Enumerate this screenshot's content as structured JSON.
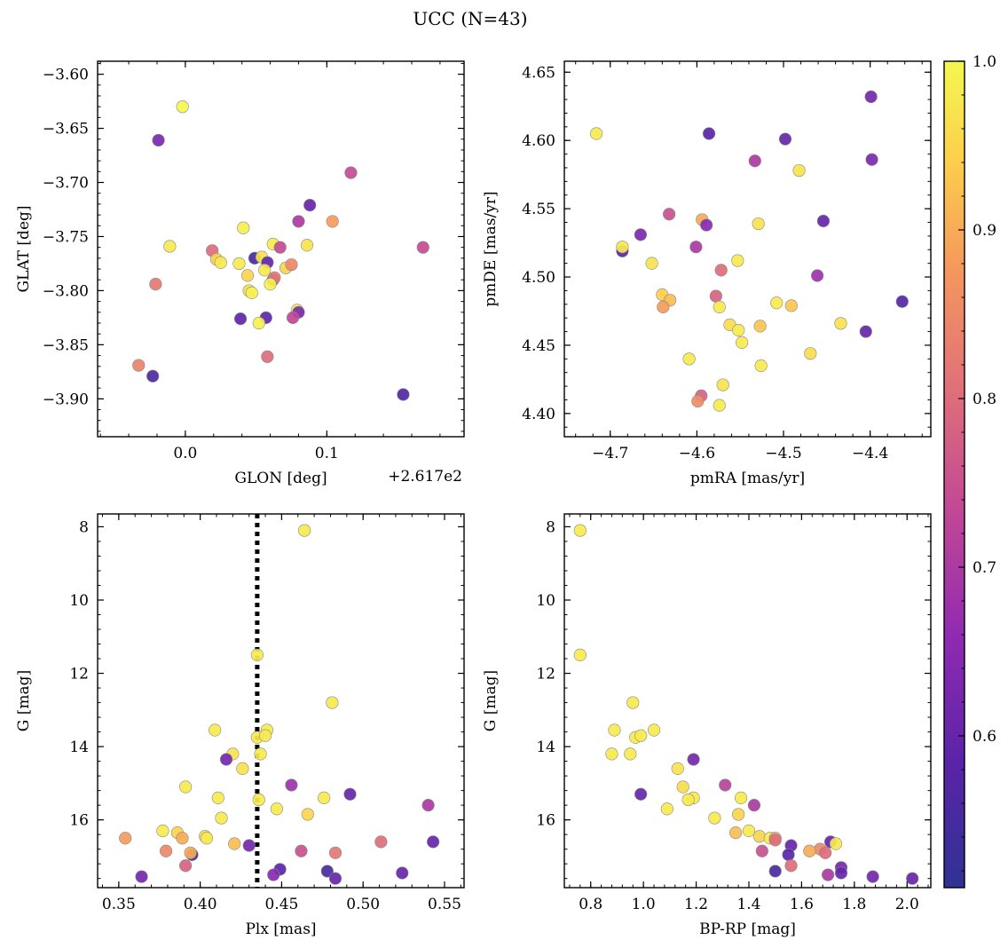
{
  "title": "UCC (N=43)",
  "colorbar": {
    "ticks": [
      0.6,
      0.7,
      0.8,
      0.9,
      1.0
    ],
    "tick_labels": [
      "0.6",
      "0.7",
      "0.8",
      "0.9",
      "1.0"
    ],
    "range": [
      0.51,
      1.0
    ],
    "colormap": "plasma"
  },
  "chart_data": [
    {
      "type": "scatter",
      "title": "",
      "xlabel": "GLON [deg]",
      "ylabel": "GLAT [deg]",
      "x_offset_label": "+2.617e2",
      "xlim": [
        -0.062,
        0.197
      ],
      "ylim": [
        -3.935,
        -3.588
      ],
      "y_inverted": false,
      "xticks": [
        0.0,
        0.1
      ],
      "xtick_labels": [
        "0.0",
        "0.1"
      ],
      "yticks": [
        -3.6,
        -3.65,
        -3.7,
        -3.75,
        -3.8,
        -3.85,
        -3.9
      ],
      "ytick_labels": [
        "−3.60",
        "−3.65",
        "−3.70",
        "−3.75",
        "−3.80",
        "−3.85",
        "−3.90"
      ],
      "points": [
        {
          "x": -0.002,
          "y": -3.63,
          "c": 1.0
        },
        {
          "x": -0.019,
          "y": -3.661,
          "c": 0.63
        },
        {
          "x": 0.117,
          "y": -3.691,
          "c": 0.74
        },
        {
          "x": 0.088,
          "y": -3.721,
          "c": 0.6
        },
        {
          "x": 0.08,
          "y": -3.736,
          "c": 0.7
        },
        {
          "x": 0.104,
          "y": -3.736,
          "c": 0.88
        },
        {
          "x": 0.041,
          "y": -3.742,
          "c": 0.99
        },
        {
          "x": 0.168,
          "y": -3.76,
          "c": 0.74
        },
        {
          "x": -0.011,
          "y": -3.759,
          "c": 0.98
        },
        {
          "x": 0.062,
          "y": -3.757,
          "c": 0.98
        },
        {
          "x": 0.067,
          "y": -3.76,
          "c": 0.74
        },
        {
          "x": 0.086,
          "y": -3.758,
          "c": 0.97
        },
        {
          "x": 0.019,
          "y": -3.763,
          "c": 0.8
        },
        {
          "x": 0.022,
          "y": -3.771,
          "c": 0.94
        },
        {
          "x": 0.025,
          "y": -3.774,
          "c": 0.98
        },
        {
          "x": 0.038,
          "y": -3.775,
          "c": 0.98
        },
        {
          "x": 0.049,
          "y": -3.77,
          "c": 0.55
        },
        {
          "x": 0.054,
          "y": -3.769,
          "c": 0.97
        },
        {
          "x": 0.058,
          "y": -3.774,
          "c": 0.6
        },
        {
          "x": 0.071,
          "y": -3.779,
          "c": 0.95
        },
        {
          "x": 0.075,
          "y": -3.776,
          "c": 0.85
        },
        {
          "x": 0.056,
          "y": -3.781,
          "c": 0.98
        },
        {
          "x": 0.044,
          "y": -3.786,
          "c": 0.95
        },
        {
          "x": 0.062,
          "y": -3.79,
          "c": 0.65
        },
        {
          "x": 0.063,
          "y": -3.788,
          "c": 0.82
        },
        {
          "x": 0.06,
          "y": -3.794,
          "c": 0.99
        },
        {
          "x": -0.021,
          "y": -3.794,
          "c": 0.82
        },
        {
          "x": 0.045,
          "y": -3.8,
          "c": 0.96
        },
        {
          "x": 0.047,
          "y": -3.802,
          "c": 0.99
        },
        {
          "x": 0.079,
          "y": -3.818,
          "c": 0.98
        },
        {
          "x": 0.08,
          "y": -3.82,
          "c": 0.63
        },
        {
          "x": 0.076,
          "y": -3.825,
          "c": 0.73
        },
        {
          "x": 0.057,
          "y": -3.825,
          "c": 0.59
        },
        {
          "x": 0.039,
          "y": -3.826,
          "c": 0.59
        },
        {
          "x": 0.052,
          "y": -3.83,
          "c": 0.99
        },
        {
          "x": 0.058,
          "y": -3.861,
          "c": 0.8
        },
        {
          "x": -0.033,
          "y": -3.869,
          "c": 0.84
        },
        {
          "x": -0.023,
          "y": -3.879,
          "c": 0.56
        },
        {
          "x": 0.154,
          "y": -3.896,
          "c": 0.57
        }
      ]
    },
    {
      "type": "scatter",
      "title": "",
      "xlabel": "pmRA [mas/yr]",
      "ylabel": "pmDE [mas/yr]",
      "xlim": [
        -4.753,
        -4.33
      ],
      "ylim": [
        4.383,
        4.658
      ],
      "y_inverted": false,
      "xticks": [
        -4.7,
        -4.6,
        -4.5,
        -4.4
      ],
      "xtick_labels": [
        "−4.7",
        "−4.6",
        "−4.5",
        "−4.4"
      ],
      "yticks": [
        4.4,
        4.45,
        4.5,
        4.55,
        4.6,
        4.65
      ],
      "ytick_labels": [
        "4.40",
        "4.45",
        "4.50",
        "4.55",
        "4.60",
        "4.65"
      ],
      "points": [
        {
          "x": -4.399,
          "y": 4.632,
          "c": 0.62
        },
        {
          "x": -4.716,
          "y": 4.605,
          "c": 0.98
        },
        {
          "x": -4.586,
          "y": 4.605,
          "c": 0.58
        },
        {
          "x": -4.498,
          "y": 4.601,
          "c": 0.6
        },
        {
          "x": -4.398,
          "y": 4.586,
          "c": 0.63
        },
        {
          "x": -4.533,
          "y": 4.585,
          "c": 0.7
        },
        {
          "x": -4.482,
          "y": 4.578,
          "c": 0.97
        },
        {
          "x": -4.632,
          "y": 4.546,
          "c": 0.75
        },
        {
          "x": -4.594,
          "y": 4.542,
          "c": 0.9
        },
        {
          "x": -4.454,
          "y": 4.541,
          "c": 0.6
        },
        {
          "x": -4.589,
          "y": 4.538,
          "c": 0.65
        },
        {
          "x": -4.529,
          "y": 4.539,
          "c": 0.97
        },
        {
          "x": -4.665,
          "y": 4.531,
          "c": 0.63
        },
        {
          "x": -4.601,
          "y": 4.522,
          "c": 0.7
        },
        {
          "x": -4.686,
          "y": 4.519,
          "c": 0.58
        },
        {
          "x": -4.686,
          "y": 4.522,
          "c": 0.98
        },
        {
          "x": -4.652,
          "y": 4.51,
          "c": 0.97
        },
        {
          "x": -4.553,
          "y": 4.512,
          "c": 0.98
        },
        {
          "x": -4.572,
          "y": 4.505,
          "c": 0.8
        },
        {
          "x": -4.461,
          "y": 4.501,
          "c": 0.68
        },
        {
          "x": -4.64,
          "y": 4.487,
          "c": 0.94
        },
        {
          "x": -4.578,
          "y": 4.486,
          "c": 0.78
        },
        {
          "x": -4.631,
          "y": 4.483,
          "c": 0.92
        },
        {
          "x": -4.363,
          "y": 4.482,
          "c": 0.57
        },
        {
          "x": -4.508,
          "y": 4.481,
          "c": 0.98
        },
        {
          "x": -4.639,
          "y": 4.478,
          "c": 0.88
        },
        {
          "x": -4.574,
          "y": 4.478,
          "c": 0.98
        },
        {
          "x": -4.491,
          "y": 4.479,
          "c": 0.93
        },
        {
          "x": -4.434,
          "y": 4.466,
          "c": 0.97
        },
        {
          "x": -4.562,
          "y": 4.465,
          "c": 0.96
        },
        {
          "x": -4.527,
          "y": 4.464,
          "c": 0.93
        },
        {
          "x": -4.405,
          "y": 4.46,
          "c": 0.6
        },
        {
          "x": -4.552,
          "y": 4.461,
          "c": 0.98
        },
        {
          "x": -4.548,
          "y": 4.452,
          "c": 0.98
        },
        {
          "x": -4.469,
          "y": 4.444,
          "c": 0.96
        },
        {
          "x": -4.609,
          "y": 4.44,
          "c": 0.98
        },
        {
          "x": -4.526,
          "y": 4.435,
          "c": 0.98
        },
        {
          "x": -4.57,
          "y": 4.421,
          "c": 0.97
        },
        {
          "x": -4.595,
          "y": 4.413,
          "c": 0.78
        },
        {
          "x": -4.599,
          "y": 4.409,
          "c": 0.86
        },
        {
          "x": -4.574,
          "y": 4.406,
          "c": 0.98
        }
      ]
    },
    {
      "type": "scatter",
      "title": "",
      "xlabel": "Plx [mas]",
      "ylabel": "G [mag]",
      "xlim": [
        0.337,
        0.562
      ],
      "ylim": [
        17.85,
        7.65
      ],
      "y_inverted": true,
      "xticks": [
        0.35,
        0.4,
        0.45,
        0.5,
        0.55
      ],
      "xtick_labels": [
        "0.35",
        "0.40",
        "0.45",
        "0.50",
        "0.55"
      ],
      "yticks": [
        8,
        10,
        12,
        14,
        16
      ],
      "ytick_labels": [
        "8",
        "10",
        "12",
        "14",
        "16"
      ],
      "vline": {
        "x": 0.435,
        "style": "dotted",
        "color": "#000000"
      },
      "points": [
        {
          "x": 0.464,
          "y": 8.1,
          "c": 0.98
        },
        {
          "x": 0.435,
          "y": 11.5,
          "c": 0.98
        },
        {
          "x": 0.481,
          "y": 12.8,
          "c": 0.98
        },
        {
          "x": 0.409,
          "y": 13.55,
          "c": 0.98
        },
        {
          "x": 0.441,
          "y": 13.55,
          "c": 0.98
        },
        {
          "x": 0.435,
          "y": 13.75,
          "c": 0.98
        },
        {
          "x": 0.44,
          "y": 13.7,
          "c": 0.98
        },
        {
          "x": 0.42,
          "y": 14.2,
          "c": 0.97
        },
        {
          "x": 0.437,
          "y": 14.2,
          "c": 0.98
        },
        {
          "x": 0.416,
          "y": 14.35,
          "c": 0.62
        },
        {
          "x": 0.426,
          "y": 14.6,
          "c": 0.97
        },
        {
          "x": 0.456,
          "y": 15.05,
          "c": 0.68
        },
        {
          "x": 0.391,
          "y": 15.1,
          "c": 0.98
        },
        {
          "x": 0.492,
          "y": 15.3,
          "c": 0.6
        },
        {
          "x": 0.476,
          "y": 15.4,
          "c": 0.98
        },
        {
          "x": 0.411,
          "y": 15.4,
          "c": 0.98
        },
        {
          "x": 0.436,
          "y": 15.45,
          "c": 0.98
        },
        {
          "x": 0.54,
          "y": 15.6,
          "c": 0.7
        },
        {
          "x": 0.447,
          "y": 15.7,
          "c": 0.98
        },
        {
          "x": 0.466,
          "y": 15.85,
          "c": 0.95
        },
        {
          "x": 0.413,
          "y": 15.95,
          "c": 0.98
        },
        {
          "x": 0.377,
          "y": 16.3,
          "c": 0.98
        },
        {
          "x": 0.386,
          "y": 16.35,
          "c": 0.95
        },
        {
          "x": 0.389,
          "y": 16.5,
          "c": 0.9
        },
        {
          "x": 0.354,
          "y": 16.5,
          "c": 0.88
        },
        {
          "x": 0.403,
          "y": 16.45,
          "c": 0.97
        },
        {
          "x": 0.404,
          "y": 16.5,
          "c": 0.98
        },
        {
          "x": 0.421,
          "y": 16.65,
          "c": 0.92
        },
        {
          "x": 0.511,
          "y": 16.6,
          "c": 0.8
        },
        {
          "x": 0.543,
          "y": 16.6,
          "c": 0.6
        },
        {
          "x": 0.43,
          "y": 16.7,
          "c": 0.62
        },
        {
          "x": 0.379,
          "y": 16.85,
          "c": 0.85
        },
        {
          "x": 0.462,
          "y": 16.85,
          "c": 0.75
        },
        {
          "x": 0.483,
          "y": 16.9,
          "c": 0.82
        },
        {
          "x": 0.395,
          "y": 16.95,
          "c": 0.55
        },
        {
          "x": 0.394,
          "y": 16.9,
          "c": 0.9
        },
        {
          "x": 0.391,
          "y": 17.25,
          "c": 0.78
        },
        {
          "x": 0.449,
          "y": 17.35,
          "c": 0.58
        },
        {
          "x": 0.478,
          "y": 17.4,
          "c": 0.55
        },
        {
          "x": 0.445,
          "y": 17.5,
          "c": 0.65
        },
        {
          "x": 0.524,
          "y": 17.45,
          "c": 0.6
        },
        {
          "x": 0.364,
          "y": 17.55,
          "c": 0.62
        },
        {
          "x": 0.483,
          "y": 17.6,
          "c": 0.6
        }
      ]
    },
    {
      "type": "scatter",
      "title": "",
      "xlabel": "BP-RP [mag]",
      "ylabel": "G [mag]",
      "xlim": [
        0.7,
        2.09
      ],
      "ylim": [
        17.85,
        7.65
      ],
      "y_inverted": true,
      "xticks": [
        0.8,
        1.0,
        1.2,
        1.4,
        1.6,
        1.8,
        2.0
      ],
      "xtick_labels": [
        "0.8",
        "1.0",
        "1.2",
        "1.4",
        "1.6",
        "1.8",
        "2.0"
      ],
      "yticks": [
        8,
        10,
        12,
        14,
        16
      ],
      "ytick_labels": [
        "8",
        "10",
        "12",
        "14",
        "16"
      ],
      "points": [
        {
          "x": 0.76,
          "y": 8.1,
          "c": 0.98
        },
        {
          "x": 0.76,
          "y": 11.5,
          "c": 0.98
        },
        {
          "x": 0.96,
          "y": 12.8,
          "c": 0.98
        },
        {
          "x": 0.89,
          "y": 13.55,
          "c": 0.98
        },
        {
          "x": 1.04,
          "y": 13.55,
          "c": 0.98
        },
        {
          "x": 0.97,
          "y": 13.75,
          "c": 0.98
        },
        {
          "x": 0.99,
          "y": 13.7,
          "c": 0.98
        },
        {
          "x": 0.88,
          "y": 14.2,
          "c": 0.98
        },
        {
          "x": 0.95,
          "y": 14.2,
          "c": 0.98
        },
        {
          "x": 1.19,
          "y": 14.35,
          "c": 0.62
        },
        {
          "x": 1.13,
          "y": 14.6,
          "c": 0.97
        },
        {
          "x": 1.31,
          "y": 15.05,
          "c": 0.72
        },
        {
          "x": 1.15,
          "y": 15.1,
          "c": 0.96
        },
        {
          "x": 0.99,
          "y": 15.3,
          "c": 0.6
        },
        {
          "x": 1.37,
          "y": 15.4,
          "c": 0.98
        },
        {
          "x": 1.19,
          "y": 15.4,
          "c": 0.98
        },
        {
          "x": 1.17,
          "y": 15.45,
          "c": 0.98
        },
        {
          "x": 1.42,
          "y": 15.6,
          "c": 0.7
        },
        {
          "x": 1.09,
          "y": 15.7,
          "c": 0.98
        },
        {
          "x": 1.36,
          "y": 15.85,
          "c": 0.95
        },
        {
          "x": 1.27,
          "y": 15.95,
          "c": 0.98
        },
        {
          "x": 1.4,
          "y": 16.3,
          "c": 0.98
        },
        {
          "x": 1.35,
          "y": 16.35,
          "c": 0.92
        },
        {
          "x": 1.44,
          "y": 16.45,
          "c": 0.95
        },
        {
          "x": 1.48,
          "y": 16.5,
          "c": 0.98
        },
        {
          "x": 1.5,
          "y": 16.5,
          "c": 0.9
        },
        {
          "x": 1.5,
          "y": 16.55,
          "c": 0.8
        },
        {
          "x": 1.71,
          "y": 16.6,
          "c": 0.6
        },
        {
          "x": 1.73,
          "y": 16.65,
          "c": 0.98
        },
        {
          "x": 1.56,
          "y": 16.7,
          "c": 0.6
        },
        {
          "x": 1.67,
          "y": 16.8,
          "c": 0.85
        },
        {
          "x": 1.63,
          "y": 16.85,
          "c": 0.9
        },
        {
          "x": 1.69,
          "y": 16.9,
          "c": 0.8
        },
        {
          "x": 1.45,
          "y": 16.85,
          "c": 0.75
        },
        {
          "x": 1.55,
          "y": 16.95,
          "c": 0.58
        },
        {
          "x": 1.56,
          "y": 17.25,
          "c": 0.8
        },
        {
          "x": 1.75,
          "y": 17.3,
          "c": 0.62
        },
        {
          "x": 1.5,
          "y": 17.4,
          "c": 0.55
        },
        {
          "x": 1.75,
          "y": 17.45,
          "c": 0.6
        },
        {
          "x": 1.7,
          "y": 17.5,
          "c": 0.7
        },
        {
          "x": 1.87,
          "y": 17.55,
          "c": 0.62
        },
        {
          "x": 2.02,
          "y": 17.6,
          "c": 0.6
        }
      ]
    }
  ]
}
